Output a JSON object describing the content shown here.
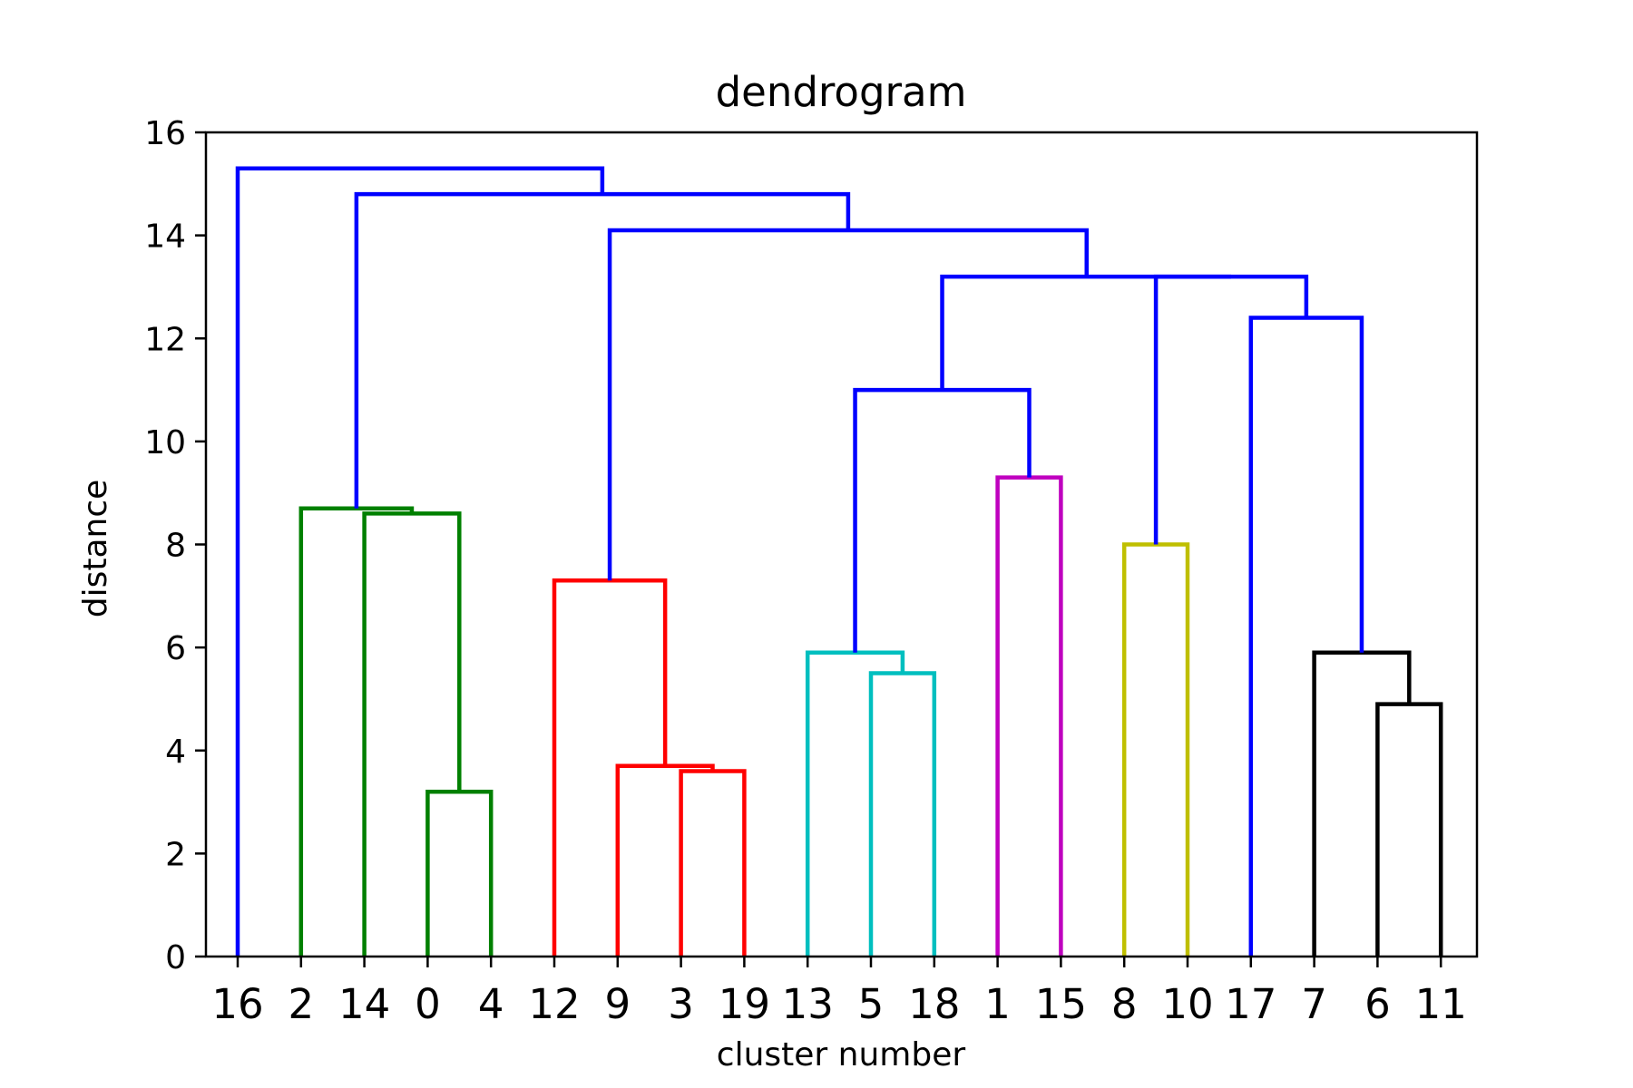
{
  "chart_data": {
    "type": "dendrogram",
    "title": "dendrogram",
    "xlabel": "cluster number",
    "ylabel": "distance",
    "ylim": [
      0,
      16
    ],
    "yticks": [
      0,
      2,
      4,
      6,
      8,
      10,
      12,
      14,
      16
    ],
    "leaves": [
      "16",
      "2",
      "14",
      "0",
      "4",
      "12",
      "9",
      "3",
      "19",
      "13",
      "5",
      "18",
      "1",
      "15",
      "8",
      "10",
      "17",
      "7",
      "6",
      "11"
    ],
    "colors": {
      "green": "#008000",
      "red": "#ff0000",
      "cyan": "#00bfbf",
      "magenta": "#bf00bf",
      "yellow": "#bfbf00",
      "black": "#000000",
      "blue": "#0000ff"
    },
    "links": [
      {
        "left": "leaf:0",
        "right": "leaf:4",
        "height": 3.2,
        "color": "green"
      },
      {
        "left": "leaf:14",
        "right": "node:0",
        "height": 8.6,
        "color": "green"
      },
      {
        "left": "leaf:2",
        "right": "node:1",
        "height": 8.7,
        "color": "green"
      },
      {
        "left": "leaf:3",
        "right": "leaf:19",
        "height": 3.6,
        "color": "red"
      },
      {
        "left": "leaf:9",
        "right": "node:3",
        "height": 3.7,
        "color": "red"
      },
      {
        "left": "leaf:12",
        "right": "node:4",
        "height": 7.3,
        "color": "red"
      },
      {
        "left": "leaf:5",
        "right": "leaf:18",
        "height": 5.5,
        "color": "cyan"
      },
      {
        "left": "leaf:13",
        "right": "node:6",
        "height": 5.9,
        "color": "cyan"
      },
      {
        "left": "leaf:1",
        "right": "leaf:15",
        "height": 9.3,
        "color": "magenta"
      },
      {
        "left": "node:7",
        "right": "node:8",
        "height": 11.0,
        "color": "blue"
      },
      {
        "left": "leaf:8",
        "right": "leaf:10",
        "height": 8.0,
        "color": "yellow"
      },
      {
        "left": "leaf:6",
        "right": "leaf:11",
        "height": 4.9,
        "color": "black"
      },
      {
        "left": "leaf:7",
        "right": "node:11",
        "height": 5.9,
        "color": "black"
      },
      {
        "left": "leaf:17",
        "right": "node:12",
        "height": 12.4,
        "color": "blue"
      },
      {
        "left": "node:10",
        "right": "node:13",
        "height": 13.2,
        "color": "blue"
      },
      {
        "left": "node:9",
        "right": "node:14",
        "height": 13.2,
        "color": "blue"
      },
      {
        "left": "node:5",
        "right": "node:15",
        "height": 14.1,
        "color": "blue"
      },
      {
        "left": "node:2",
        "right": "node:16",
        "height": 14.8,
        "color": "blue"
      },
      {
        "left": "leaf:16",
        "right": "node:17",
        "height": 15.3,
        "color": "blue"
      }
    ]
  }
}
